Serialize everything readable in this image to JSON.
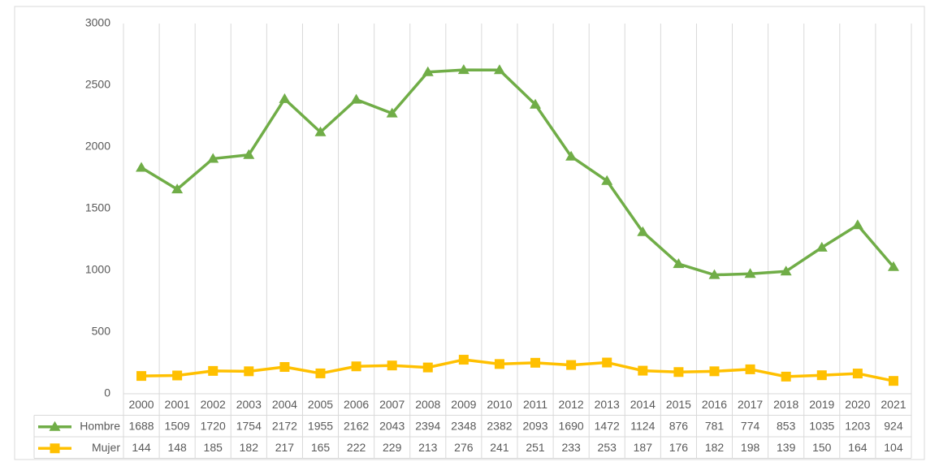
{
  "chart_data": {
    "type": "line",
    "stacked": true,
    "categories": [
      "2000",
      "2001",
      "2002",
      "2003",
      "2004",
      "2005",
      "2006",
      "2007",
      "2008",
      "2009",
      "2010",
      "2011",
      "2012",
      "2013",
      "2014",
      "2015",
      "2016",
      "2017",
      "2018",
      "2019",
      "2020",
      "2021"
    ],
    "series": [
      {
        "name": "Hombre",
        "color": "#70ad47",
        "marker": "triangle",
        "values": [
          1688,
          1509,
          1720,
          1754,
          2172,
          1955,
          2162,
          2043,
          2394,
          2348,
          2382,
          2093,
          1690,
          1472,
          1124,
          876,
          781,
          774,
          853,
          1035,
          1203,
          924
        ]
      },
      {
        "name": "Mujer",
        "color": "#ffc000",
        "marker": "square",
        "values": [
          144,
          148,
          185,
          182,
          217,
          165,
          222,
          229,
          213,
          276,
          241,
          251,
          233,
          253,
          187,
          176,
          182,
          198,
          139,
          150,
          164,
          104
        ]
      }
    ],
    "ylim": [
      0,
      3000
    ],
    "yticks": [
      0,
      500,
      1000,
      1500,
      2000,
      2500,
      3000
    ],
    "data_table": true
  }
}
